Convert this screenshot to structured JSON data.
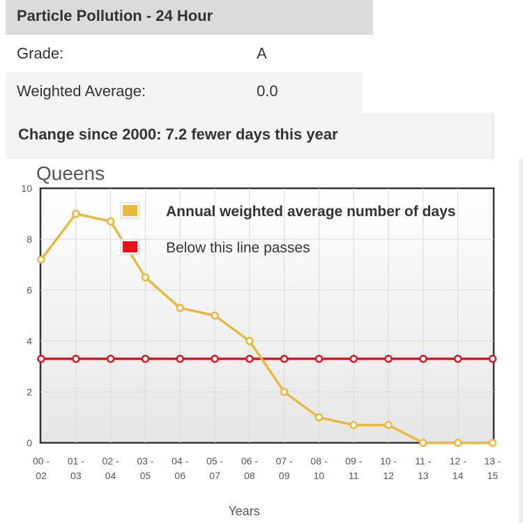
{
  "header": {
    "title": "Particle Pollution - 24 Hour"
  },
  "grade": {
    "label": "Grade:",
    "value": "A"
  },
  "weighted_average": {
    "label": "Weighted Average:",
    "value": "0.0"
  },
  "change": {
    "text": "Change since 2000: 7.2 fewer days this year"
  },
  "colors": {
    "series": "#e8b93c",
    "threshold": "#e8101a",
    "frame": "#333333",
    "grid": "#d8d8d8"
  },
  "chart_data": {
    "type": "line",
    "title": "Queens",
    "xlabel": "Years",
    "ylabel": "",
    "ylim": [
      0,
      10
    ],
    "yticks": [
      "0",
      "2",
      "4",
      "6",
      "8",
      "10"
    ],
    "categories": [
      [
        "00 -",
        "02"
      ],
      [
        "01 -",
        "03"
      ],
      [
        "02 -",
        "04"
      ],
      [
        "03 -",
        "05"
      ],
      [
        "04 -",
        "06"
      ],
      [
        "05 -",
        "07"
      ],
      [
        "06 -",
        "08"
      ],
      [
        "07 -",
        "09"
      ],
      [
        "08 -",
        "10"
      ],
      [
        "09 -",
        "11"
      ],
      [
        "10 -",
        "12"
      ],
      [
        "11 -",
        "13"
      ],
      [
        "12 -",
        "14"
      ],
      [
        "13 -",
        "15"
      ]
    ],
    "series": [
      {
        "name": "Annual weighted average number of days",
        "color": "#e8b93c",
        "values": [
          7.2,
          9.0,
          8.7,
          6.5,
          5.3,
          5.0,
          4.0,
          2.0,
          1.0,
          0.7,
          0.7,
          0.0,
          0.0,
          0.0
        ]
      },
      {
        "name": "Below this line passes",
        "color": "#e8101a",
        "values": [
          3.3,
          3.3,
          3.3,
          3.3,
          3.3,
          3.3,
          3.3,
          3.3,
          3.3,
          3.3,
          3.3,
          3.3,
          3.3,
          3.3
        ]
      }
    ],
    "grid": true,
    "legend_position": "top-left"
  }
}
